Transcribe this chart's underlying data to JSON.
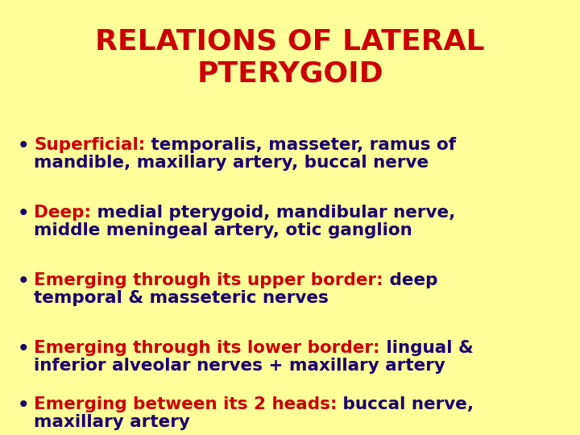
{
  "background_color": "#FFFF99",
  "title_line1": "RELATIONS OF LATERAL",
  "title_line2": "PTERYGOID",
  "title_color": "#CC0000",
  "title_fontsize": 26,
  "bullet_color": "#1a006e",
  "red_color": "#CC0000",
  "bullet_fontsize": 15.5,
  "bullet_char": "•",
  "bullets": [
    {
      "red_part": "Superficial:",
      "normal_part": " temporalis, masseter, ramus of\nmandible, maxillary artery, buccal nerve"
    },
    {
      "red_part": "Deep:",
      "normal_part": " medial pterygoid, mandibular nerve,\nmiddle meningeal artery, otic ganglion"
    },
    {
      "red_part": "Emerging through its upper border:",
      "normal_part": " deep\ntemporal & masseteric nerves"
    },
    {
      "red_part": "Emerging through its lower border:",
      "normal_part": " lingual &\ninferior alveolar nerves + maxillary artery"
    },
    {
      "red_part": "Emerging between its 2 heads:",
      "normal_part": " buccal nerve,\nmaxillary artery"
    }
  ]
}
